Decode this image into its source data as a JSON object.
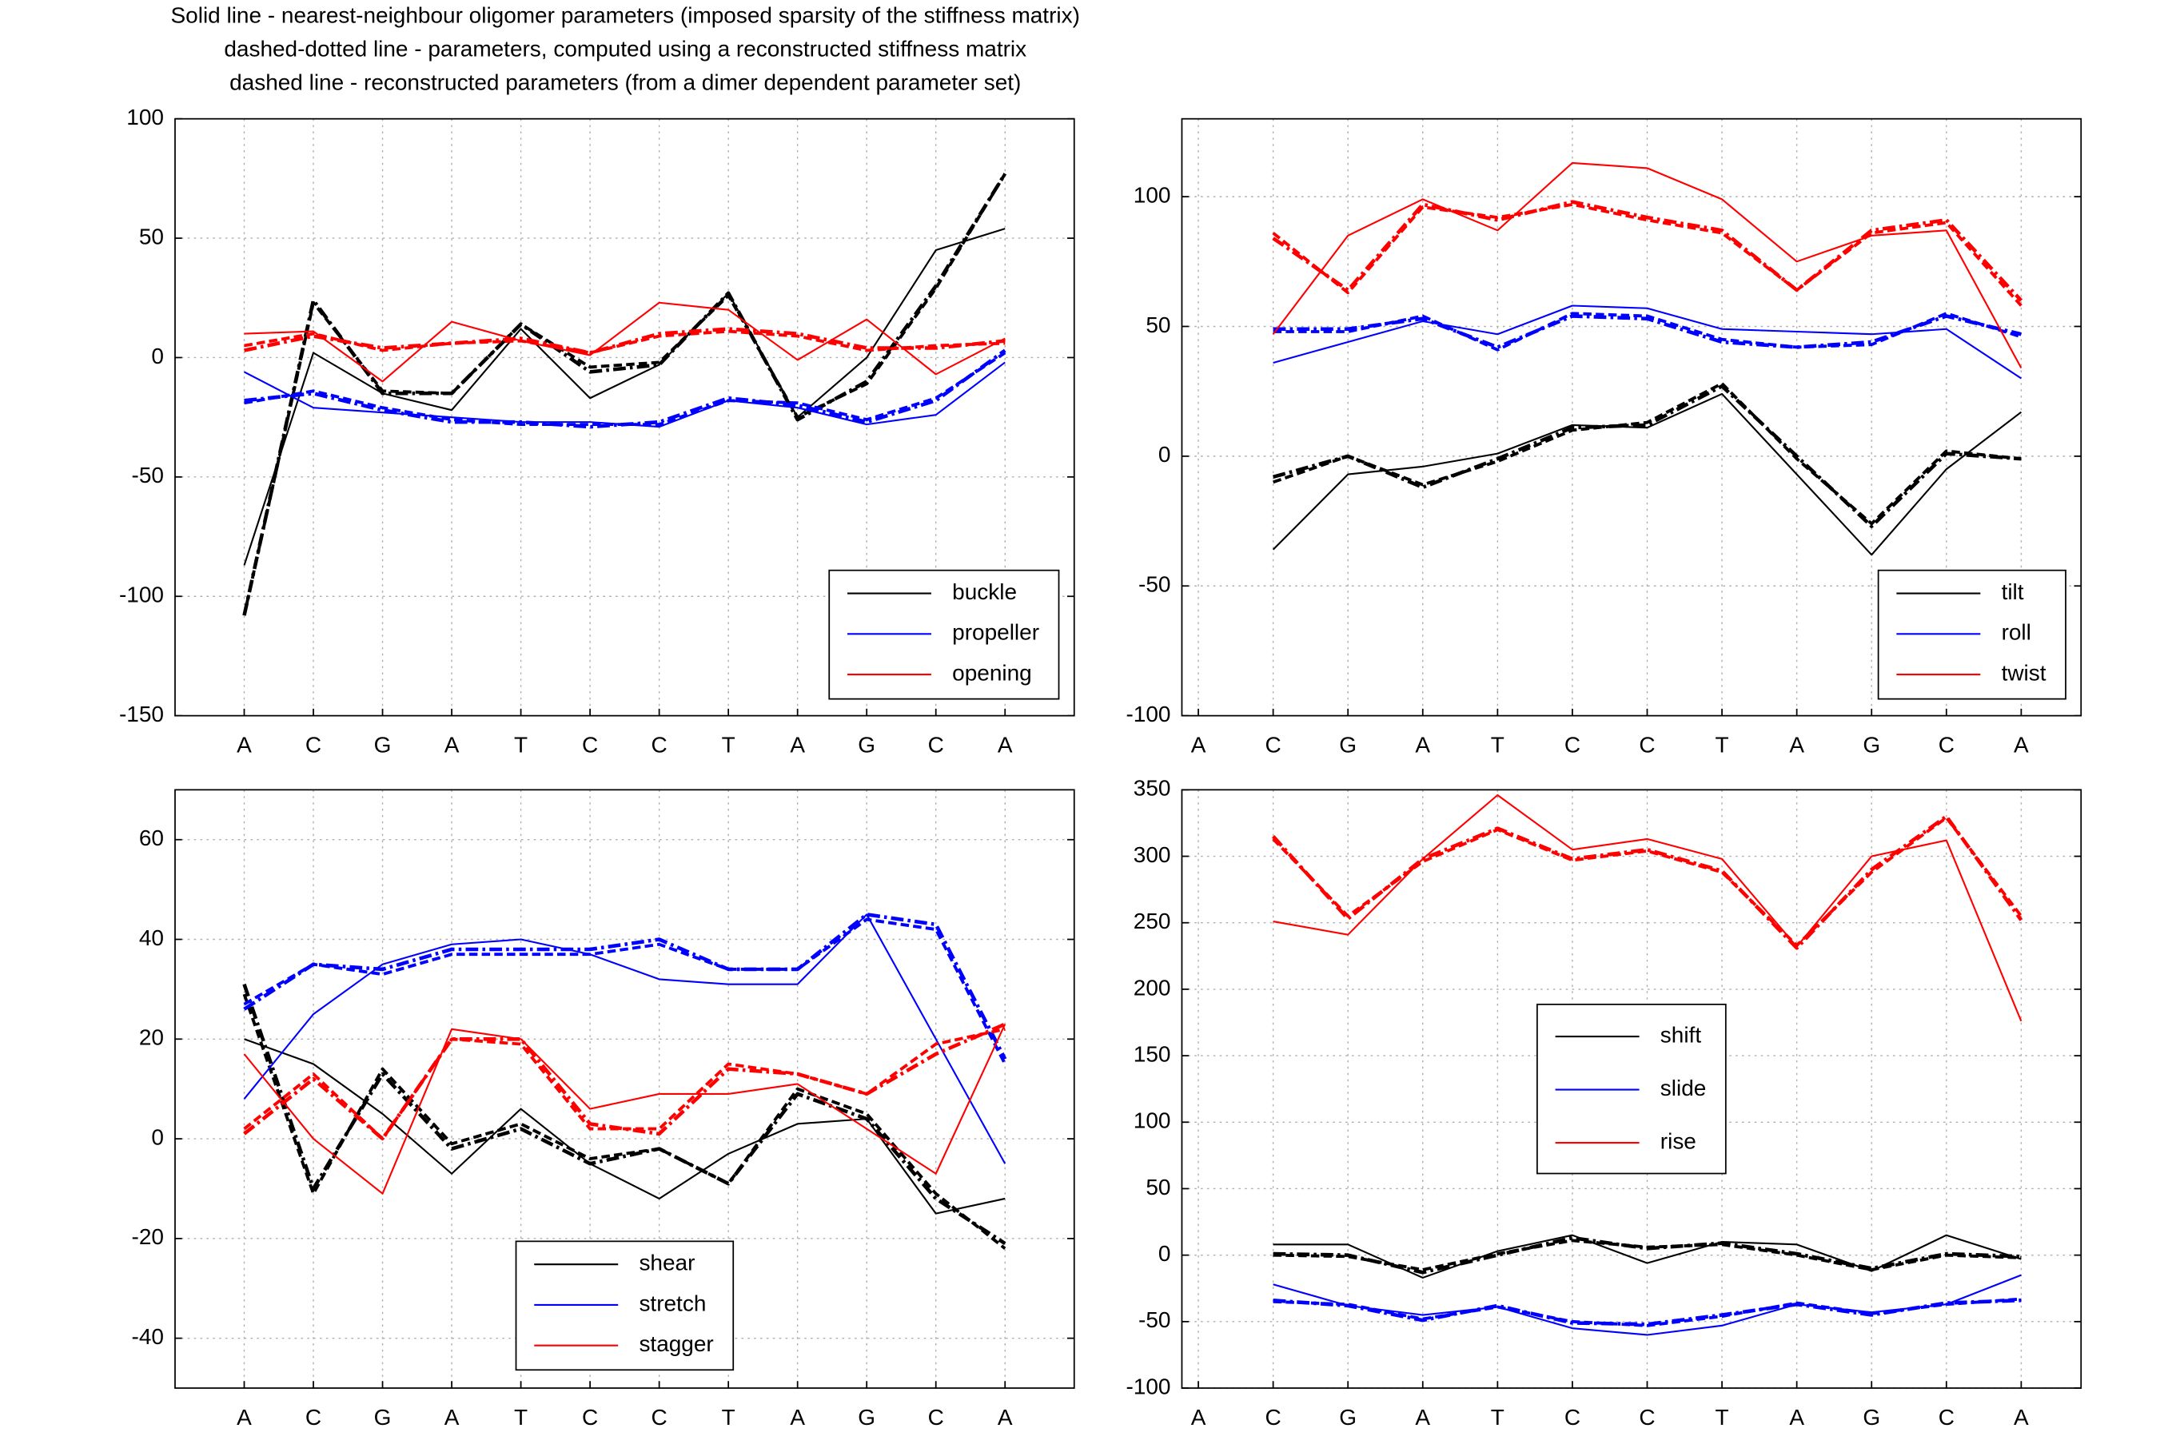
{
  "title": [
    "Solid line - nearest-neighbour oligomer parameters (imposed sparsity of the stiffness matrix)",
    "dashed-dotted line - parameters, computed using a reconstructed stiffness matrix",
    "dashed line - reconstructed parameters (from a dimer dependent parameter set)"
  ],
  "chart_data": [
    {
      "type": "line",
      "categories": [
        "A",
        "C",
        "G",
        "A",
        "T",
        "C",
        "C",
        "T",
        "A",
        "G",
        "C",
        "A"
      ],
      "xlim": [
        0,
        13
      ],
      "ylim": [
        -150,
        100
      ],
      "yticks": [
        -150,
        -100,
        -50,
        0,
        50,
        100
      ],
      "grid": true,
      "legend": "lower right",
      "series": [
        {
          "name": "buckle",
          "color": "#000000",
          "lines": [
            {
              "style": "solid",
              "values": [
                -87,
                2,
                -15,
                -22,
                12,
                -17,
                -3,
                27,
                -25,
                0,
                45,
                54
              ]
            },
            {
              "style": "dashdot",
              "values": [
                -108,
                24,
                -15,
                -15,
                14,
                -6,
                -3,
                27,
                -26,
                -10,
                30,
                77
              ]
            },
            {
              "style": "dashed",
              "values": [
                -108,
                23,
                -14,
                -15,
                14,
                -4,
                -2,
                26,
                -25,
                -11,
                29,
                77
              ]
            }
          ]
        },
        {
          "name": "propeller",
          "color": "#0000ff",
          "lines": [
            {
              "style": "solid",
              "values": [
                -6,
                -21,
                -23,
                -25,
                -27,
                -27,
                -29,
                -18,
                -21,
                -28,
                -24,
                -2
              ]
            },
            {
              "style": "dashdot",
              "values": [
                -18,
                -15,
                -22,
                -27,
                -27,
                -29,
                -27,
                -17,
                -20,
                -27,
                -18,
                3
              ]
            },
            {
              "style": "dashed",
              "values": [
                -19,
                -14,
                -21,
                -26,
                -28,
                -28,
                -28,
                -18,
                -19,
                -26,
                -17,
                2
              ]
            }
          ]
        },
        {
          "name": "opening",
          "color": "#ff0000",
          "lines": [
            {
              "style": "solid",
              "values": [
                10,
                11,
                -10,
                15,
                7,
                1,
                23,
                20,
                -1,
                16,
                -7,
                8
              ]
            },
            {
              "style": "dashdot",
              "values": [
                3,
                9,
                4,
                6,
                8,
                2,
                10,
                12,
                10,
                4,
                4,
                7
              ]
            },
            {
              "style": "dashed",
              "values": [
                5,
                10,
                3,
                6,
                7,
                2,
                9,
                11,
                9,
                3,
                5,
                6
              ]
            }
          ]
        }
      ]
    },
    {
      "type": "line",
      "categories": [
        "A",
        "C",
        "G",
        "A",
        "T",
        "C",
        "C",
        "T",
        "A",
        "G",
        "C",
        "A"
      ],
      "xlim": [
        0.78,
        12.8
      ],
      "ylim": [
        -100,
        130
      ],
      "yticks": [
        -100,
        -50,
        0,
        50,
        100
      ],
      "grid": true,
      "legend": "lower right",
      "series": [
        {
          "name": "tilt",
          "color": "#000000",
          "lines": [
            {
              "style": "solid",
              "values": [
                null,
                -36,
                -7,
                -4,
                1,
                12,
                11,
                24,
                -7,
                -38,
                -5,
                17
              ]
            },
            {
              "style": "dashdot",
              "values": [
                null,
                -8,
                0,
                -12,
                -1,
                11,
                12,
                27,
                0,
                -27,
                1,
                -1
              ]
            },
            {
              "style": "dashed",
              "values": [
                null,
                -10,
                0,
                -11,
                -2,
                10,
                13,
                28,
                -1,
                -26,
                2,
                -1
              ]
            }
          ]
        },
        {
          "name": "roll",
          "color": "#0000ff",
          "lines": [
            {
              "style": "solid",
              "values": [
                null,
                36,
                44,
                52,
                47,
                58,
                57,
                49,
                48,
                47,
                49,
                30
              ]
            },
            {
              "style": "dashdot",
              "values": [
                null,
                49,
                49,
                53,
                42,
                54,
                53,
                44,
                42,
                44,
                54,
                47
              ]
            },
            {
              "style": "dashed",
              "values": [
                null,
                48,
                48,
                54,
                41,
                55,
                54,
                45,
                42,
                43,
                55,
                46
              ]
            }
          ]
        },
        {
          "name": "twist",
          "color": "#ff0000",
          "lines": [
            {
              "style": "solid",
              "values": [
                null,
                47,
                85,
                99,
                87,
                113,
                111,
                99,
                75,
                85,
                87,
                34
              ]
            },
            {
              "style": "dashdot",
              "values": [
                null,
                84,
                64,
                97,
                91,
                98,
                92,
                87,
                64,
                87,
                91,
                60
              ]
            },
            {
              "style": "dashed",
              "values": [
                null,
                86,
                63,
                96,
                92,
                97,
                91,
                86,
                64,
                86,
                90,
                58
              ]
            }
          ]
        }
      ]
    },
    {
      "type": "line",
      "categories": [
        "A",
        "C",
        "G",
        "A",
        "T",
        "C",
        "C",
        "T",
        "A",
        "G",
        "C",
        "A"
      ],
      "xlim": [
        0,
        13
      ],
      "ylim": [
        -50,
        70
      ],
      "yticks": [
        -40,
        -20,
        0,
        20,
        40,
        60
      ],
      "grid": true,
      "legend": "lower center",
      "series": [
        {
          "name": "shear",
          "color": "#000000",
          "lines": [
            {
              "style": "solid",
              "values": [
                20,
                15,
                5,
                -7,
                6,
                -5,
                -12,
                -3,
                3,
                4,
                -15,
                -12
              ]
            },
            {
              "style": "dashdot",
              "values": [
                31,
                -10,
                13,
                -2,
                2,
                -5,
                -2,
                -9,
                9,
                4,
                -12,
                -21
              ]
            },
            {
              "style": "dashed",
              "values": [
                29,
                -11,
                14,
                -1,
                3,
                -4,
                -2,
                -9,
                10,
                5,
                -11,
                -22
              ]
            }
          ]
        },
        {
          "name": "stretch",
          "color": "#0000ff",
          "lines": [
            {
              "style": "solid",
              "values": [
                8,
                25,
                35,
                39,
                40,
                37,
                32,
                31,
                31,
                45,
                20,
                -5
              ]
            },
            {
              "style": "dashdot",
              "values": [
                26,
                35,
                34,
                38,
                38,
                38,
                40,
                34,
                34,
                45,
                43,
                16
              ]
            },
            {
              "style": "dashed",
              "values": [
                27,
                35,
                33,
                37,
                37,
                37,
                39,
                34,
                34,
                44,
                42,
                15
              ]
            }
          ]
        },
        {
          "name": "stagger",
          "color": "#ff0000",
          "lines": [
            {
              "style": "solid",
              "values": [
                17,
                0,
                -11,
                22,
                20,
                6,
                9,
                9,
                11,
                2,
                -7,
                23
              ]
            },
            {
              "style": "dashdot",
              "values": [
                1,
                12,
                0,
                20,
                20,
                3,
                1,
                14,
                13,
                9,
                17,
                23
              ]
            },
            {
              "style": "dashed",
              "values": [
                2,
                13,
                0,
                20,
                19,
                2,
                2,
                15,
                13,
                9,
                19,
                22
              ]
            }
          ]
        }
      ]
    },
    {
      "type": "line",
      "categories": [
        "A",
        "C",
        "G",
        "A",
        "T",
        "C",
        "C",
        "T",
        "A",
        "G",
        "C",
        "A"
      ],
      "xlim": [
        0.78,
        12.8
      ],
      "ylim": [
        -100,
        350
      ],
      "yticks": [
        -100,
        -50,
        0,
        50,
        100,
        150,
        200,
        250,
        300,
        350
      ],
      "grid": true,
      "legend": "center",
      "series": [
        {
          "name": "shift",
          "color": "#000000",
          "lines": [
            {
              "style": "solid",
              "values": [
                null,
                8,
                8,
                -17,
                3,
                15,
                -6,
                10,
                8,
                -12,
                15,
                -3
              ]
            },
            {
              "style": "dashdot",
              "values": [
                null,
                1,
                0,
                -13,
                0,
                13,
                5,
                9,
                1,
                -10,
                1,
                -1
              ]
            },
            {
              "style": "dashed",
              "values": [
                null,
                0,
                -1,
                -11,
                1,
                11,
                6,
                8,
                0,
                -11,
                0,
                -2
              ]
            }
          ]
        },
        {
          "name": "slide",
          "color": "#0000ff",
          "lines": [
            {
              "style": "solid",
              "values": [
                null,
                -22,
                -38,
                -45,
                -39,
                -55,
                -60,
                -53,
                -37,
                -43,
                -37,
                -15
              ]
            },
            {
              "style": "dashdot",
              "values": [
                null,
                -34,
                -38,
                -49,
                -38,
                -51,
                -52,
                -45,
                -37,
                -45,
                -36,
                -34
              ]
            },
            {
              "style": "dashed",
              "values": [
                null,
                -35,
                -37,
                -48,
                -39,
                -50,
                -53,
                -46,
                -36,
                -44,
                -37,
                -33
              ]
            }
          ]
        },
        {
          "name": "rise",
          "color": "#ff0000",
          "lines": [
            {
              "style": "solid",
              "values": [
                null,
                251,
                241,
                298,
                346,
                305,
                313,
                298,
                232,
                300,
                312,
                176
              ]
            },
            {
              "style": "dashdot",
              "values": [
                null,
                315,
                253,
                298,
                321,
                298,
                305,
                289,
                231,
                290,
                330,
                252
              ]
            },
            {
              "style": "dashed",
              "values": [
                null,
                313,
                255,
                296,
                320,
                297,
                304,
                288,
                233,
                288,
                329,
                255
              ]
            }
          ]
        }
      ]
    }
  ]
}
